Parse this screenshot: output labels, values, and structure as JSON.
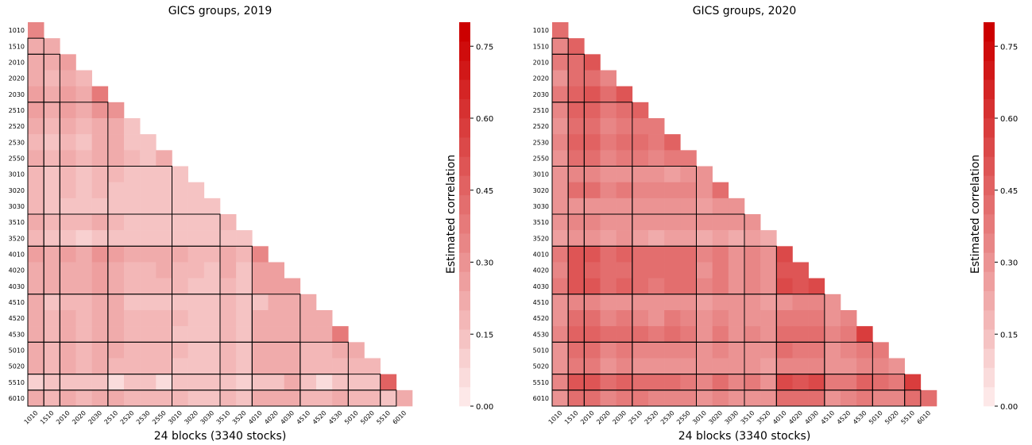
{
  "chart_data": [
    {
      "type": "heatmap",
      "title": "GICS groups, 2019",
      "xlabel": "24 blocks (3340 stocks)",
      "colorbar_label": "Estimated correlation",
      "categories": [
        "1010",
        "1510",
        "2010",
        "2020",
        "2030",
        "2510",
        "2520",
        "2530",
        "2550",
        "3010",
        "3020",
        "3030",
        "3510",
        "3520",
        "4010",
        "4020",
        "4030",
        "4510",
        "4520",
        "4530",
        "5010",
        "5020",
        "5510",
        "6010"
      ],
      "values": [
        [
          0.35
        ],
        [
          0.2,
          0.22
        ],
        [
          0.22,
          0.22,
          0.25
        ],
        [
          0.2,
          0.18,
          0.2,
          0.18
        ],
        [
          0.25,
          0.22,
          0.25,
          0.22,
          0.38
        ],
        [
          0.25,
          0.22,
          0.25,
          0.2,
          0.28,
          0.3
        ],
        [
          0.2,
          0.18,
          0.2,
          0.18,
          0.22,
          0.22,
          0.15
        ],
        [
          0.18,
          0.15,
          0.18,
          0.15,
          0.2,
          0.2,
          0.15,
          0.15
        ],
        [
          0.2,
          0.18,
          0.2,
          0.18,
          0.22,
          0.22,
          0.18,
          0.15,
          0.22
        ],
        [
          0.18,
          0.15,
          0.18,
          0.15,
          0.18,
          0.18,
          0.15,
          0.15,
          0.15,
          0.15
        ],
        [
          0.18,
          0.12,
          0.18,
          0.15,
          0.18,
          0.15,
          0.15,
          0.15,
          0.15,
          0.15,
          0.15
        ],
        [
          0.18,
          0.15,
          0.15,
          0.12,
          0.15,
          0.15,
          0.15,
          0.15,
          0.15,
          0.15,
          0.12,
          0.12
        ],
        [
          0.2,
          0.18,
          0.18,
          0.18,
          0.2,
          0.18,
          0.15,
          0.15,
          0.15,
          0.15,
          0.15,
          0.15,
          0.18
        ],
        [
          0.18,
          0.15,
          0.15,
          0.1,
          0.15,
          0.15,
          0.15,
          0.12,
          0.15,
          0.15,
          0.15,
          0.12,
          0.12,
          0.12
        ],
        [
          0.25,
          0.22,
          0.25,
          0.22,
          0.28,
          0.25,
          0.2,
          0.2,
          0.2,
          0.2,
          0.18,
          0.18,
          0.2,
          0.18,
          0.35
        ],
        [
          0.22,
          0.2,
          0.22,
          0.2,
          0.25,
          0.22,
          0.18,
          0.18,
          0.2,
          0.18,
          0.18,
          0.15,
          0.2,
          0.15,
          0.25,
          0.25
        ],
        [
          0.22,
          0.2,
          0.22,
          0.2,
          0.25,
          0.22,
          0.18,
          0.18,
          0.18,
          0.18,
          0.15,
          0.15,
          0.18,
          0.12,
          0.25,
          0.25,
          0.25
        ],
        [
          0.2,
          0.15,
          0.18,
          0.18,
          0.2,
          0.2,
          0.15,
          0.15,
          0.15,
          0.15,
          0.15,
          0.15,
          0.18,
          0.12,
          0.15,
          0.2,
          0.22,
          0.2
        ],
        [
          0.2,
          0.18,
          0.2,
          0.18,
          0.22,
          0.2,
          0.18,
          0.18,
          0.18,
          0.18,
          0.15,
          0.15,
          0.18,
          0.15,
          0.22,
          0.22,
          0.22,
          0.2,
          0.2
        ],
        [
          0.2,
          0.18,
          0.2,
          0.18,
          0.22,
          0.2,
          0.18,
          0.18,
          0.18,
          0.15,
          0.15,
          0.15,
          0.18,
          0.15,
          0.22,
          0.22,
          0.22,
          0.2,
          0.2,
          0.38
        ],
        [
          0.2,
          0.18,
          0.2,
          0.18,
          0.2,
          0.2,
          0.18,
          0.18,
          0.18,
          0.18,
          0.15,
          0.15,
          0.18,
          0.15,
          0.22,
          0.22,
          0.2,
          0.18,
          0.18,
          0.2,
          0.2
        ],
        [
          0.2,
          0.18,
          0.2,
          0.18,
          0.2,
          0.18,
          0.18,
          0.18,
          0.18,
          0.15,
          0.15,
          0.15,
          0.18,
          0.15,
          0.2,
          0.2,
          0.2,
          0.18,
          0.18,
          0.18,
          0.18,
          0.18
        ],
        [
          0.1,
          0.12,
          0.15,
          0.12,
          0.15,
          0.08,
          0.12,
          0.12,
          0.08,
          0.12,
          0.12,
          0.12,
          0.12,
          0.1,
          0.15,
          0.15,
          0.2,
          0.12,
          0.08,
          0.15,
          0.15,
          0.15,
          0.45
        ],
        [
          0.2,
          0.18,
          0.2,
          0.18,
          0.22,
          0.2,
          0.18,
          0.18,
          0.18,
          0.18,
          0.15,
          0.15,
          0.18,
          0.15,
          0.22,
          0.22,
          0.2,
          0.18,
          0.18,
          0.2,
          0.18,
          0.18,
          0.12,
          0.22
        ]
      ],
      "clim": [
        0,
        0.8
      ],
      "colormap": [
        "#fde8e8",
        "#cc0000"
      ],
      "cticks": [
        {
          "value": 0,
          "label": "0.00"
        },
        {
          "value": 0.15,
          "label": "0.15"
        },
        {
          "value": 0.3,
          "label": "0.30"
        },
        {
          "value": 0.45,
          "label": "0.45"
        },
        {
          "value": 0.6,
          "label": "0.60"
        },
        {
          "value": 0.75,
          "label": "0.75"
        }
      ]
    },
    {
      "type": "heatmap",
      "title": "GICS groups, 2020",
      "xlabel": "24 blocks (3340 stocks)",
      "colorbar_label": "Estimated correlation",
      "categories": [
        "1010",
        "1510",
        "2010",
        "2020",
        "2030",
        "2510",
        "2520",
        "2530",
        "2550",
        "3010",
        "3020",
        "3030",
        "3510",
        "3520",
        "4010",
        "4020",
        "4030",
        "4510",
        "4520",
        "4530",
        "5010",
        "5020",
        "5510",
        "6010"
      ],
      "values": [
        [
          0.42
        ],
        [
          0.35,
          0.45
        ],
        [
          0.38,
          0.42,
          0.5
        ],
        [
          0.32,
          0.4,
          0.4,
          0.35
        ],
        [
          0.38,
          0.45,
          0.48,
          0.4,
          0.5
        ],
        [
          0.35,
          0.45,
          0.45,
          0.38,
          0.42,
          0.45
        ],
        [
          0.32,
          0.42,
          0.42,
          0.35,
          0.38,
          0.38,
          0.38
        ],
        [
          0.35,
          0.45,
          0.45,
          0.38,
          0.42,
          0.42,
          0.38,
          0.45
        ],
        [
          0.32,
          0.4,
          0.42,
          0.35,
          0.38,
          0.38,
          0.35,
          0.38,
          0.38
        ],
        [
          0.28,
          0.35,
          0.35,
          0.3,
          0.32,
          0.3,
          0.3,
          0.25,
          0.3,
          0.3
        ],
        [
          0.32,
          0.4,
          0.42,
          0.35,
          0.38,
          0.35,
          0.35,
          0.35,
          0.35,
          0.32,
          0.42
        ],
        [
          0.28,
          0.32,
          0.32,
          0.28,
          0.3,
          0.28,
          0.28,
          0.28,
          0.28,
          0.25,
          0.28,
          0.28
        ],
        [
          0.3,
          0.35,
          0.35,
          0.3,
          0.32,
          0.32,
          0.3,
          0.3,
          0.3,
          0.28,
          0.3,
          0.28,
          0.3
        ],
        [
          0.25,
          0.3,
          0.3,
          0.25,
          0.28,
          0.25,
          0.22,
          0.25,
          0.25,
          0.22,
          0.25,
          0.22,
          0.25,
          0.22
        ],
        [
          0.38,
          0.48,
          0.48,
          0.42,
          0.45,
          0.42,
          0.42,
          0.42,
          0.42,
          0.35,
          0.38,
          0.32,
          0.35,
          0.3,
          0.55
        ],
        [
          0.35,
          0.48,
          0.45,
          0.4,
          0.42,
          0.4,
          0.4,
          0.4,
          0.4,
          0.32,
          0.38,
          0.3,
          0.35,
          0.28,
          0.5,
          0.5
        ],
        [
          0.38,
          0.48,
          0.48,
          0.42,
          0.45,
          0.42,
          0.38,
          0.42,
          0.4,
          0.35,
          0.38,
          0.32,
          0.35,
          0.3,
          0.52,
          0.5,
          0.55
        ],
        [
          0.28,
          0.35,
          0.35,
          0.32,
          0.32,
          0.32,
          0.32,
          0.32,
          0.3,
          0.25,
          0.3,
          0.28,
          0.28,
          0.25,
          0.32,
          0.35,
          0.35,
          0.28
        ],
        [
          0.32,
          0.4,
          0.4,
          0.35,
          0.38,
          0.35,
          0.32,
          0.38,
          0.35,
          0.3,
          0.35,
          0.3,
          0.32,
          0.28,
          0.38,
          0.38,
          0.38,
          0.32,
          0.35
        ],
        [
          0.35,
          0.45,
          0.45,
          0.4,
          0.42,
          0.4,
          0.38,
          0.42,
          0.38,
          0.32,
          0.38,
          0.32,
          0.35,
          0.3,
          0.42,
          0.42,
          0.42,
          0.35,
          0.38,
          0.58
        ],
        [
          0.32,
          0.4,
          0.4,
          0.35,
          0.38,
          0.35,
          0.35,
          0.35,
          0.35,
          0.3,
          0.35,
          0.3,
          0.32,
          0.28,
          0.4,
          0.38,
          0.38,
          0.32,
          0.35,
          0.38,
          0.38
        ],
        [
          0.3,
          0.38,
          0.38,
          0.32,
          0.35,
          0.32,
          0.32,
          0.32,
          0.32,
          0.28,
          0.32,
          0.28,
          0.3,
          0.25,
          0.35,
          0.35,
          0.35,
          0.3,
          0.32,
          0.35,
          0.35,
          0.32
        ],
        [
          0.35,
          0.48,
          0.48,
          0.42,
          0.45,
          0.42,
          0.42,
          0.42,
          0.38,
          0.35,
          0.4,
          0.35,
          0.38,
          0.32,
          0.52,
          0.48,
          0.52,
          0.38,
          0.38,
          0.45,
          0.42,
          0.38,
          0.6
        ],
        [
          0.32,
          0.4,
          0.42,
          0.35,
          0.38,
          0.38,
          0.35,
          0.35,
          0.35,
          0.32,
          0.35,
          0.3,
          0.32,
          0.28,
          0.42,
          0.4,
          0.4,
          0.32,
          0.35,
          0.38,
          0.35,
          0.35,
          0.42,
          0.4
        ]
      ],
      "clim": [
        0,
        0.8
      ],
      "colormap": [
        "#fde8e8",
        "#cc0000"
      ],
      "cticks": [
        {
          "value": 0,
          "label": "0.00"
        },
        {
          "value": 0.15,
          "label": "0.15"
        },
        {
          "value": 0.3,
          "label": "0.30"
        },
        {
          "value": 0.45,
          "label": "0.45"
        },
        {
          "value": 0.6,
          "label": "0.60"
        },
        {
          "value": 0.75,
          "label": "0.75"
        }
      ]
    }
  ]
}
